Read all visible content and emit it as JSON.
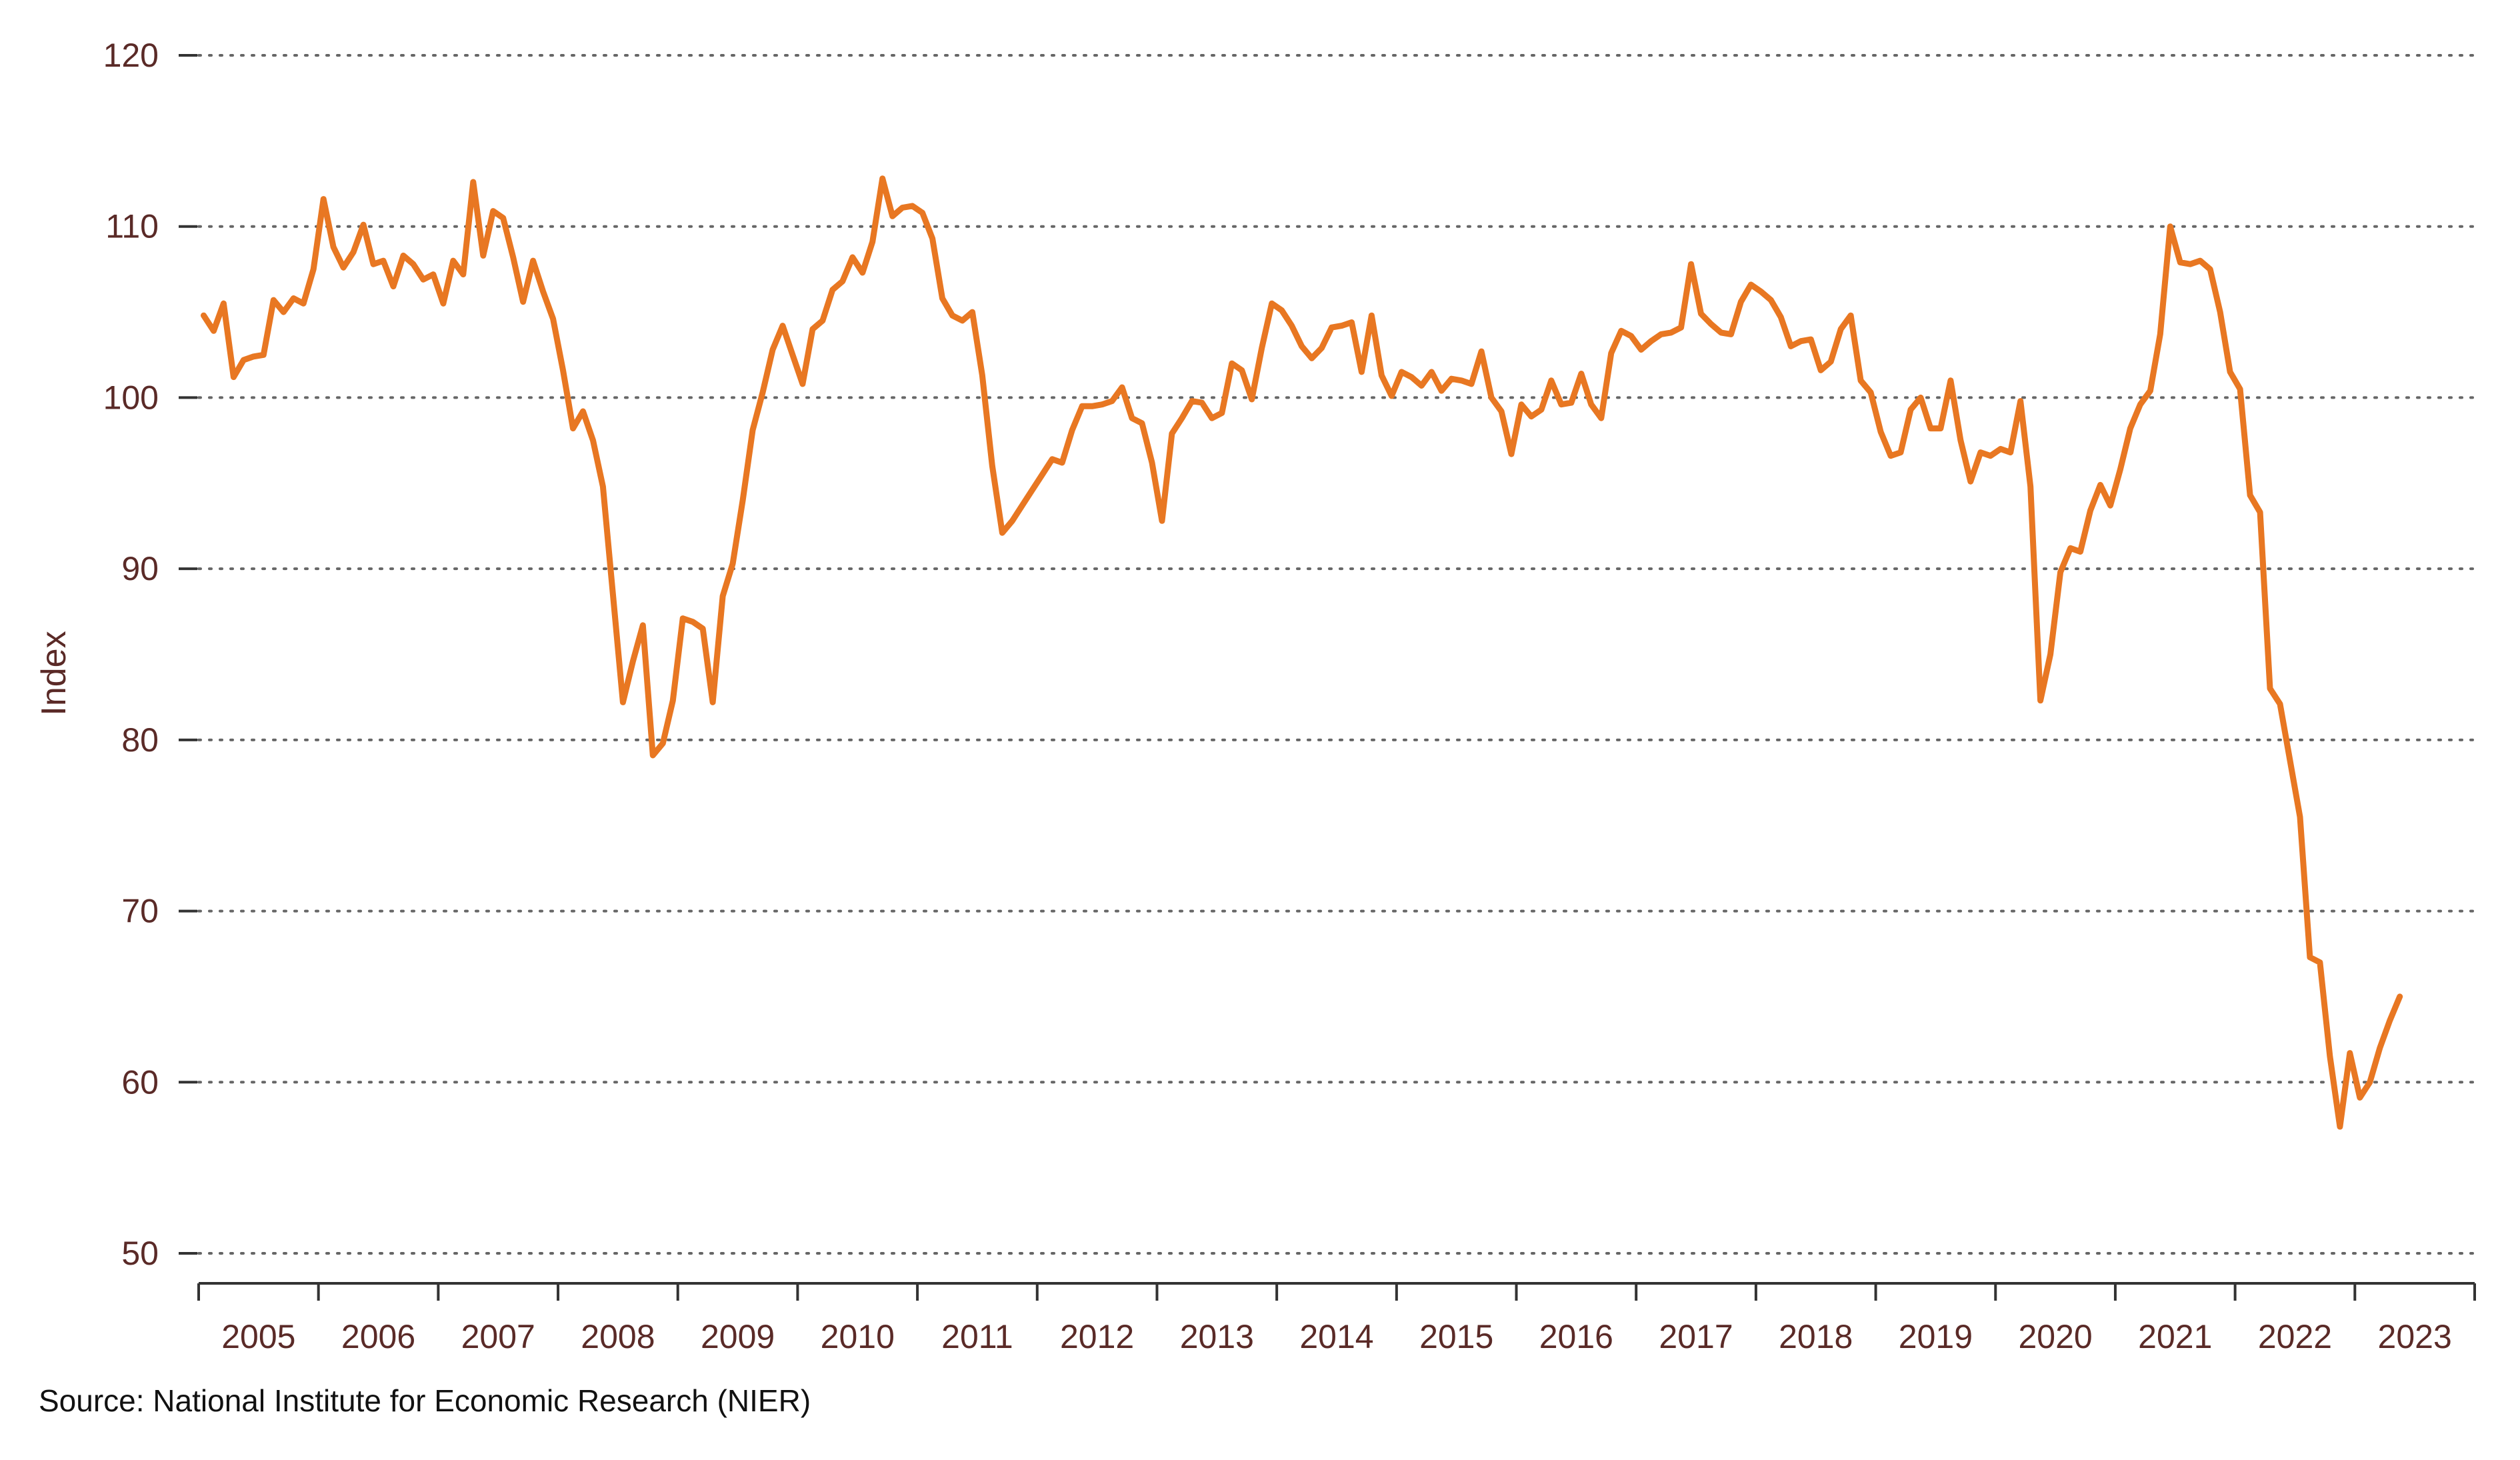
{
  "chart_data": {
    "type": "line",
    "ylabel": "Index",
    "ylim": [
      50,
      120
    ],
    "yticks": [
      50,
      60,
      70,
      80,
      90,
      100,
      110,
      120
    ],
    "xlim": [
      "2005-01",
      "2023-12"
    ],
    "xticks": [
      "2005",
      "2006",
      "2007",
      "2008",
      "2009",
      "2010",
      "2011",
      "2012",
      "2013",
      "2014",
      "2015",
      "2016",
      "2017",
      "2018",
      "2019",
      "2020",
      "2021",
      "2022",
      "2023"
    ],
    "grid": "horizontal-dotted",
    "source": "Source: National Institute for Economic Research (NIER)",
    "colors": {
      "line": "#e87722",
      "text": "#5a2a27",
      "grid": "#666666"
    },
    "series": [
      {
        "values": [
          [
            "2005-01",
            104.8
          ],
          [
            "2005-02",
            103.9
          ],
          [
            "2005-03",
            105.5
          ],
          [
            "2005-04",
            101.2
          ],
          [
            "2005-05",
            102.2
          ],
          [
            "2005-06",
            102.4
          ],
          [
            "2005-07",
            102.5
          ],
          [
            "2005-08",
            105.7
          ],
          [
            "2005-09",
            105.0
          ],
          [
            "2005-10",
            105.8
          ],
          [
            "2005-11",
            105.5
          ],
          [
            "2005-12",
            107.5
          ],
          [
            "2006-01",
            111.6
          ],
          [
            "2006-02",
            108.8
          ],
          [
            "2006-03",
            107.6
          ],
          [
            "2006-04",
            108.5
          ],
          [
            "2006-05",
            110.1
          ],
          [
            "2006-06",
            107.8
          ],
          [
            "2006-07",
            108.0
          ],
          [
            "2006-08",
            106.5
          ],
          [
            "2006-09",
            108.3
          ],
          [
            "2006-10",
            107.8
          ],
          [
            "2006-11",
            106.9
          ],
          [
            "2006-12",
            107.2
          ],
          [
            "2007-01",
            105.5
          ],
          [
            "2007-02",
            108.0
          ],
          [
            "2007-03",
            107.2
          ],
          [
            "2007-04",
            112.6
          ],
          [
            "2007-05",
            108.3
          ],
          [
            "2007-06",
            110.9
          ],
          [
            "2007-07",
            110.5
          ],
          [
            "2007-08",
            108.2
          ],
          [
            "2007-09",
            105.6
          ],
          [
            "2007-10",
            108.0
          ],
          [
            "2007-11",
            106.2
          ],
          [
            "2007-12",
            104.6
          ],
          [
            "2008-01",
            101.6
          ],
          [
            "2008-02",
            98.2
          ],
          [
            "2008-03",
            99.2
          ],
          [
            "2008-04",
            97.5
          ],
          [
            "2008-05",
            94.8
          ],
          [
            "2008-06",
            88.5
          ],
          [
            "2008-07",
            82.2
          ],
          [
            "2008-08",
            84.6
          ],
          [
            "2008-09",
            86.7
          ],
          [
            "2008-10",
            79.1
          ],
          [
            "2008-11",
            79.8
          ],
          [
            "2008-12",
            82.3
          ],
          [
            "2009-01",
            87.1
          ],
          [
            "2009-02",
            86.9
          ],
          [
            "2009-03",
            86.5
          ],
          [
            "2009-04",
            82.2
          ],
          [
            "2009-05",
            88.4
          ],
          [
            "2009-06",
            90.3
          ],
          [
            "2009-07",
            94.0
          ],
          [
            "2009-08",
            98.1
          ],
          [
            "2009-09",
            100.3
          ],
          [
            "2009-10",
            102.8
          ],
          [
            "2009-11",
            104.2
          ],
          [
            "2009-12",
            102.5
          ],
          [
            "2010-01",
            100.8
          ],
          [
            "2010-02",
            104.0
          ],
          [
            "2010-03",
            104.5
          ],
          [
            "2010-04",
            106.3
          ],
          [
            "2010-05",
            106.8
          ],
          [
            "2010-06",
            108.2
          ],
          [
            "2010-07",
            107.3
          ],
          [
            "2010-08",
            109.1
          ],
          [
            "2010-09",
            112.8
          ],
          [
            "2010-10",
            110.6
          ],
          [
            "2010-11",
            111.1
          ],
          [
            "2010-12",
            111.2
          ],
          [
            "2011-01",
            110.8
          ],
          [
            "2011-02",
            109.3
          ],
          [
            "2011-03",
            105.8
          ],
          [
            "2011-04",
            104.8
          ],
          [
            "2011-05",
            104.5
          ],
          [
            "2011-06",
            105.0
          ],
          [
            "2011-07",
            101.3
          ],
          [
            "2011-08",
            96.0
          ],
          [
            "2011-09",
            92.1
          ],
          [
            "2011-10",
            92.8
          ],
          [
            "2011-11",
            93.7
          ],
          [
            "2011-12",
            94.6
          ],
          [
            "2012-01",
            95.5
          ],
          [
            "2012-02",
            96.4
          ],
          [
            "2012-03",
            96.2
          ],
          [
            "2012-04",
            98.1
          ],
          [
            "2012-05",
            99.5
          ],
          [
            "2012-06",
            99.5
          ],
          [
            "2012-07",
            99.6
          ],
          [
            "2012-08",
            99.8
          ],
          [
            "2012-09",
            100.6
          ],
          [
            "2012-10",
            98.8
          ],
          [
            "2012-11",
            98.5
          ],
          [
            "2012-12",
            96.2
          ],
          [
            "2013-01",
            92.8
          ],
          [
            "2013-02",
            97.9
          ],
          [
            "2013-03",
            98.8
          ],
          [
            "2013-04",
            99.8
          ],
          [
            "2013-05",
            99.7
          ],
          [
            "2013-06",
            98.8
          ],
          [
            "2013-07",
            99.1
          ],
          [
            "2013-08",
            102.0
          ],
          [
            "2013-09",
            101.6
          ],
          [
            "2013-10",
            99.9
          ],
          [
            "2013-11",
            102.9
          ],
          [
            "2013-12",
            105.5
          ],
          [
            "2014-01",
            105.1
          ],
          [
            "2014-02",
            104.2
          ],
          [
            "2014-03",
            103.0
          ],
          [
            "2014-04",
            102.3
          ],
          [
            "2014-05",
            102.9
          ],
          [
            "2014-06",
            104.1
          ],
          [
            "2014-07",
            104.2
          ],
          [
            "2014-08",
            104.4
          ],
          [
            "2014-09",
            101.5
          ],
          [
            "2014-10",
            104.8
          ],
          [
            "2014-11",
            101.3
          ],
          [
            "2014-12",
            100.1
          ],
          [
            "2015-01",
            101.5
          ],
          [
            "2015-02",
            101.2
          ],
          [
            "2015-03",
            100.7
          ],
          [
            "2015-04",
            101.5
          ],
          [
            "2015-05",
            100.4
          ],
          [
            "2015-06",
            101.1
          ],
          [
            "2015-07",
            101.0
          ],
          [
            "2015-08",
            100.8
          ],
          [
            "2015-09",
            102.7
          ],
          [
            "2015-10",
            100.0
          ],
          [
            "2015-11",
            99.2
          ],
          [
            "2015-12",
            96.7
          ],
          [
            "2016-01",
            99.6
          ],
          [
            "2016-02",
            98.9
          ],
          [
            "2016-03",
            99.3
          ],
          [
            "2016-04",
            101.0
          ],
          [
            "2016-05",
            99.6
          ],
          [
            "2016-06",
            99.7
          ],
          [
            "2016-07",
            101.4
          ],
          [
            "2016-08",
            99.6
          ],
          [
            "2016-09",
            98.8
          ],
          [
            "2016-10",
            102.6
          ],
          [
            "2016-11",
            103.9
          ],
          [
            "2016-12",
            103.6
          ],
          [
            "2017-01",
            102.8
          ],
          [
            "2017-02",
            103.3
          ],
          [
            "2017-03",
            103.7
          ],
          [
            "2017-04",
            103.8
          ],
          [
            "2017-05",
            104.1
          ],
          [
            "2017-06",
            107.8
          ],
          [
            "2017-07",
            104.9
          ],
          [
            "2017-08",
            104.3
          ],
          [
            "2017-09",
            103.8
          ],
          [
            "2017-10",
            103.7
          ],
          [
            "2017-11",
            105.6
          ],
          [
            "2017-12",
            106.6
          ],
          [
            "2018-01",
            106.2
          ],
          [
            "2018-02",
            105.7
          ],
          [
            "2018-03",
            104.7
          ],
          [
            "2018-04",
            103.0
          ],
          [
            "2018-05",
            103.3
          ],
          [
            "2018-06",
            103.4
          ],
          [
            "2018-07",
            101.6
          ],
          [
            "2018-08",
            102.1
          ],
          [
            "2018-09",
            104.0
          ],
          [
            "2018-10",
            104.8
          ],
          [
            "2018-11",
            101.0
          ],
          [
            "2018-12",
            100.3
          ],
          [
            "2019-01",
            98.0
          ],
          [
            "2019-02",
            96.6
          ],
          [
            "2019-03",
            96.8
          ],
          [
            "2019-04",
            99.3
          ],
          [
            "2019-05",
            100.0
          ],
          [
            "2019-06",
            98.2
          ],
          [
            "2019-07",
            98.2
          ],
          [
            "2019-08",
            101.0
          ],
          [
            "2019-09",
            97.5
          ],
          [
            "2019-10",
            95.1
          ],
          [
            "2019-11",
            96.8
          ],
          [
            "2019-12",
            96.6
          ],
          [
            "2020-01",
            97.0
          ],
          [
            "2020-02",
            96.8
          ],
          [
            "2020-03",
            99.8
          ],
          [
            "2020-04",
            94.8
          ],
          [
            "2020-05",
            82.3
          ],
          [
            "2020-06",
            85.0
          ],
          [
            "2020-07",
            89.8
          ],
          [
            "2020-08",
            91.2
          ],
          [
            "2020-09",
            91.0
          ],
          [
            "2020-10",
            93.4
          ],
          [
            "2020-11",
            94.9
          ],
          [
            "2020-12",
            93.7
          ],
          [
            "2021-01",
            95.8
          ],
          [
            "2021-02",
            98.2
          ],
          [
            "2021-03",
            99.6
          ],
          [
            "2021-04",
            100.4
          ],
          [
            "2021-05",
            103.7
          ],
          [
            "2021-06",
            110.0
          ],
          [
            "2021-07",
            107.9
          ],
          [
            "2021-08",
            107.8
          ],
          [
            "2021-09",
            108.0
          ],
          [
            "2021-10",
            107.5
          ],
          [
            "2021-11",
            105.0
          ],
          [
            "2021-12",
            101.5
          ],
          [
            "2022-01",
            100.5
          ],
          [
            "2022-02",
            94.3
          ],
          [
            "2022-03",
            93.3
          ],
          [
            "2022-04",
            83.0
          ],
          [
            "2022-05",
            82.1
          ],
          [
            "2022-06",
            78.8
          ],
          [
            "2022-07",
            75.5
          ],
          [
            "2022-08",
            67.3
          ],
          [
            "2022-09",
            67.0
          ],
          [
            "2022-10",
            61.5
          ],
          [
            "2022-11",
            57.4
          ],
          [
            "2022-12",
            61.7
          ],
          [
            "2023-01",
            59.1
          ],
          [
            "2023-02",
            60.0
          ],
          [
            "2023-03",
            62.0
          ],
          [
            "2023-04",
            63.6
          ],
          [
            "2023-05",
            65.0
          ]
        ]
      }
    ]
  }
}
